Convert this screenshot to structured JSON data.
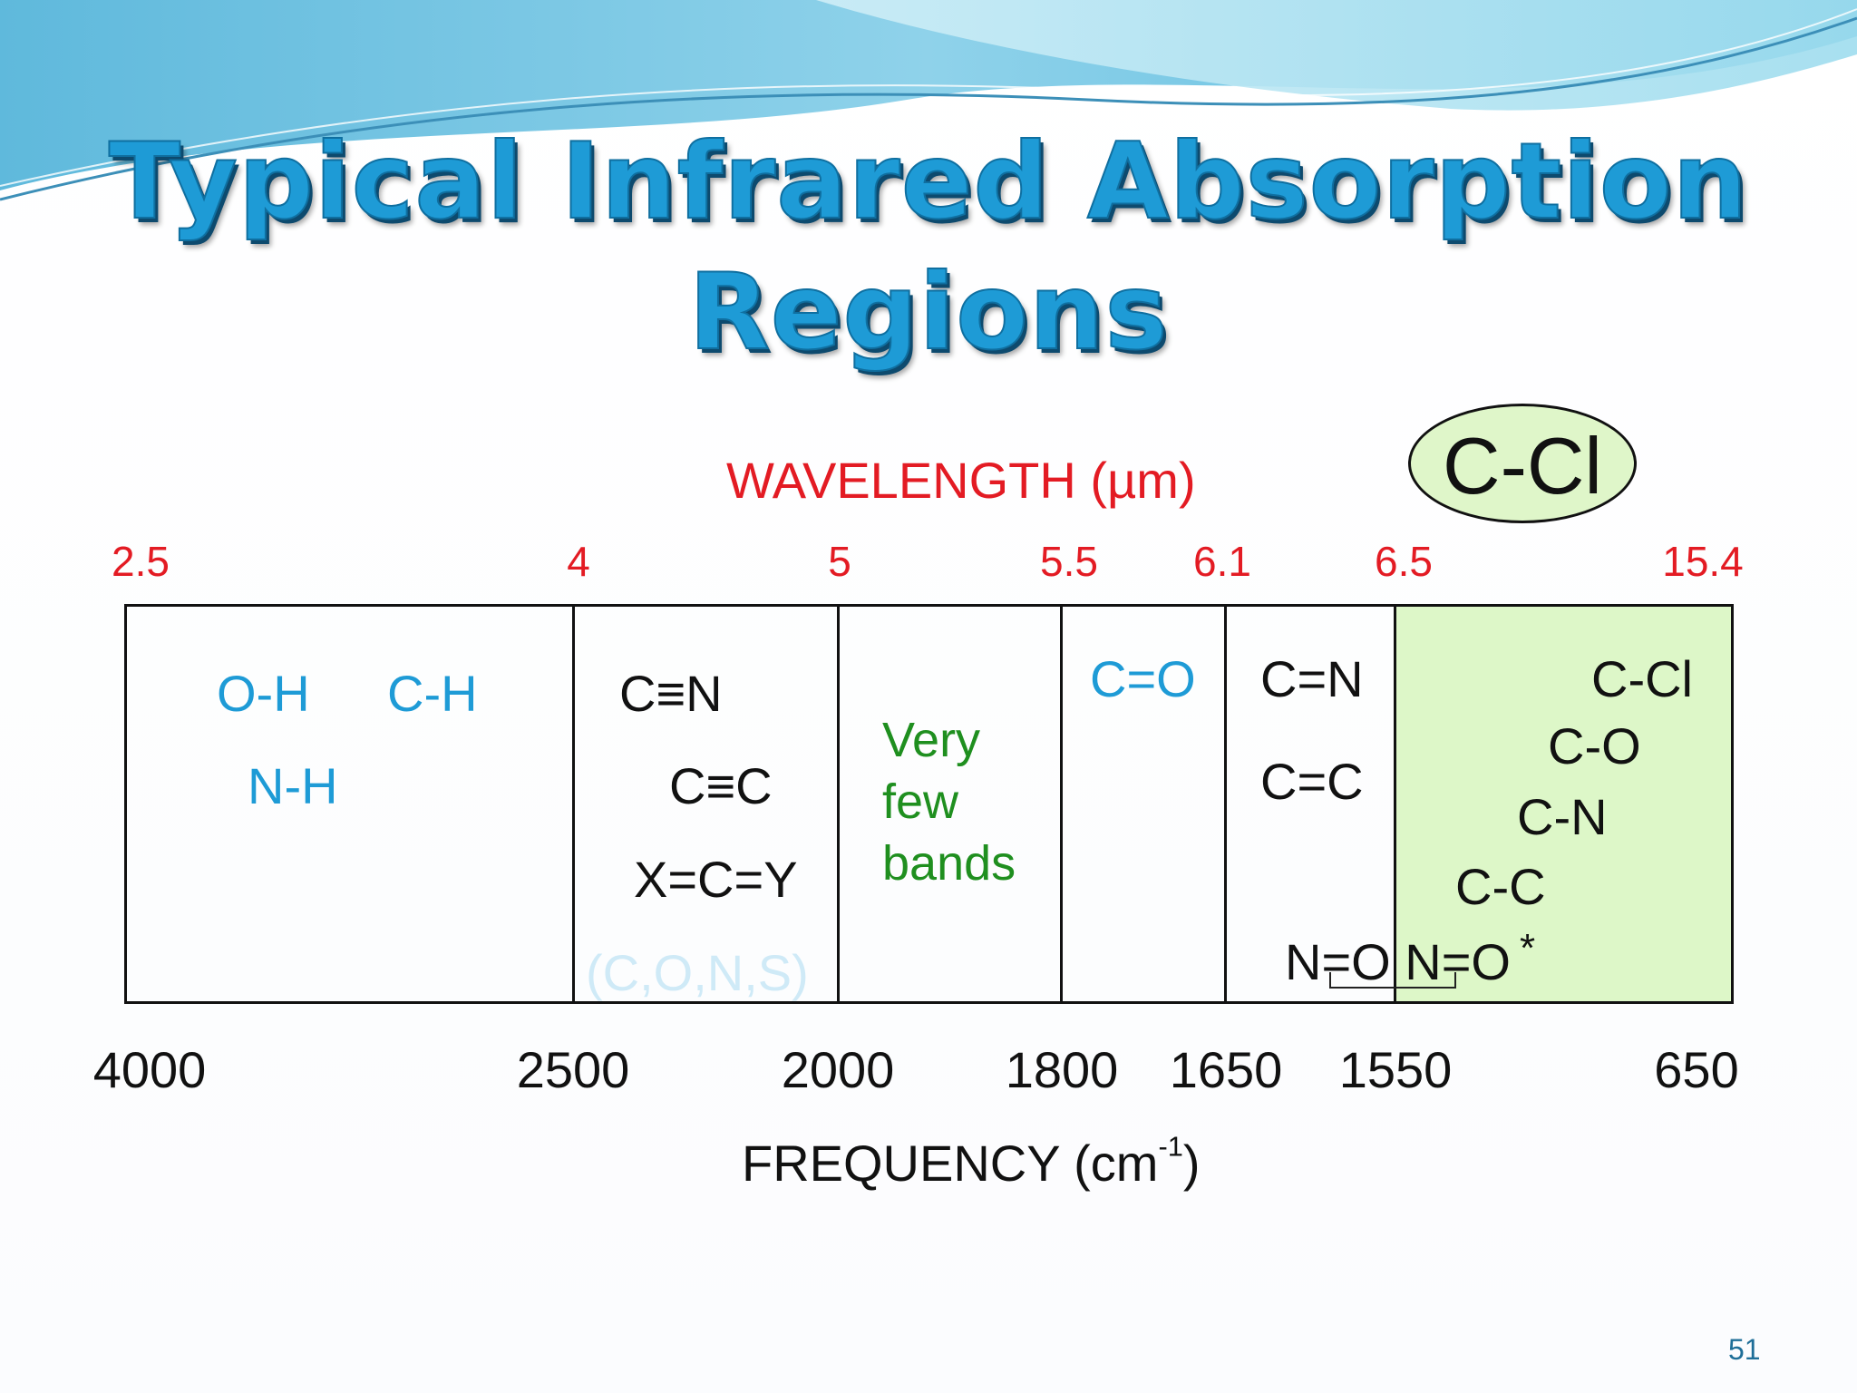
{
  "slide": {
    "title_line1": "Typical Infrared Absorption",
    "title_line2": "Regions",
    "page_number": "51"
  },
  "diagram": {
    "wavelength_axis_label": "WAVELENGTH (µm)",
    "frequency_axis_label_base": "FREQUENCY (cm",
    "frequency_axis_label_sup": "-1",
    "frequency_axis_label_end": ")",
    "wavelength_ticks": [
      "2.5",
      "4",
      "5",
      "5.5",
      "6.1",
      "6.5",
      "15.4"
    ],
    "frequency_ticks": [
      "4000",
      "2500",
      "2000",
      "1800",
      "1650",
      "1550",
      "650"
    ],
    "highlight_callout": "C-Cl",
    "regions": {
      "region_1": [
        "O-H",
        "C-H",
        "N-H"
      ],
      "region_2": [
        "C≡N",
        "C≡C",
        "X=C=Y",
        "(C,O,N,S)"
      ],
      "region_3": [
        "Very",
        "few",
        "bands"
      ],
      "region_4": [
        "C=O"
      ],
      "region_5": [
        "C=N",
        "C=C"
      ],
      "region_6": [
        "C-Cl",
        "C-O",
        "C-N",
        "C-C"
      ],
      "nitro_label": "N=O N=O",
      "asterisk": "*"
    },
    "colors": {
      "title": "#1e9bd6",
      "wavelength": "#e31b23",
      "highlight_fill": "#ddf7c8",
      "blue_labels": "#1e9bd6",
      "green_labels": "#1f8f1f"
    }
  }
}
